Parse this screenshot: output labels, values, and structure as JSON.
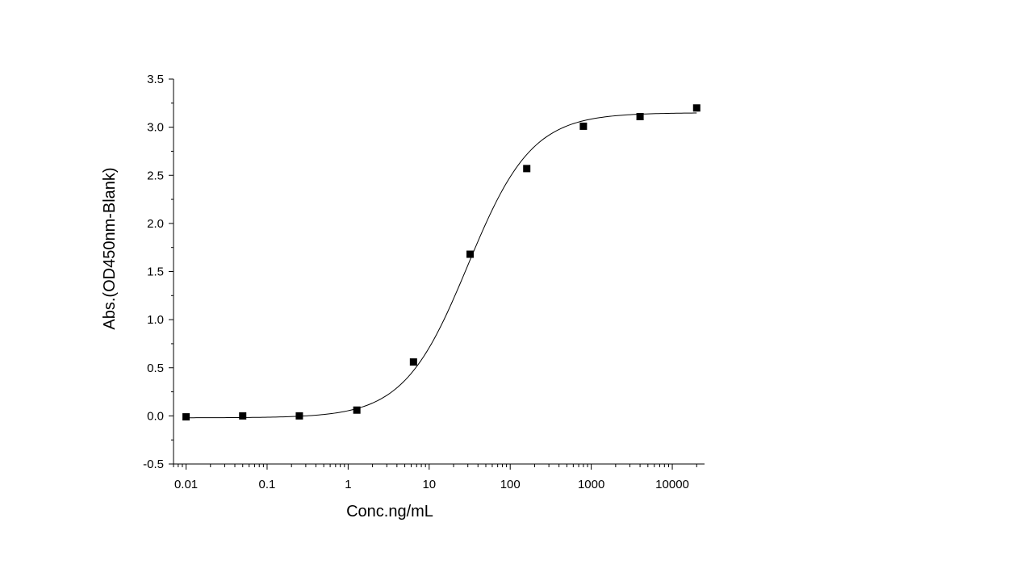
{
  "chart_data": {
    "type": "scatter",
    "title": "",
    "xlabel": "Conc.ng/mL",
    "ylabel": "Abs.(OD450nm-Blank)",
    "x_scale": "log",
    "xlim": [
      0.007,
      25000
    ],
    "ylim": [
      -0.5,
      3.5
    ],
    "x_ticks": [
      {
        "value": 0.01,
        "label": "0.01"
      },
      {
        "value": 0.1,
        "label": "0.1"
      },
      {
        "value": 1,
        "label": "1"
      },
      {
        "value": 10,
        "label": "10"
      },
      {
        "value": 100,
        "label": "100"
      },
      {
        "value": 1000,
        "label": "1000"
      },
      {
        "value": 10000,
        "label": "10000"
      }
    ],
    "y_ticks": [
      {
        "value": -0.5,
        "label": "-0.5"
      },
      {
        "value": 0.0,
        "label": "0.0"
      },
      {
        "value": 0.5,
        "label": "0.5"
      },
      {
        "value": 1.0,
        "label": "1.0"
      },
      {
        "value": 1.5,
        "label": "1.5"
      },
      {
        "value": 2.0,
        "label": "2.0"
      },
      {
        "value": 2.5,
        "label": "2.5"
      },
      {
        "value": 3.0,
        "label": "3.0"
      },
      {
        "value": 3.5,
        "label": "3.5"
      }
    ],
    "grid": false,
    "legend": "none",
    "series": [
      {
        "marker": "square",
        "color": "#000000",
        "x": [
          0.01,
          0.05,
          0.25,
          1.28,
          6.4,
          32,
          160,
          800,
          4000,
          20000
        ],
        "y": [
          -0.01,
          0.0,
          0.0,
          0.06,
          0.56,
          1.68,
          2.57,
          3.01,
          3.11,
          3.2
        ]
      }
    ],
    "fit_curve": {
      "model": "4PL",
      "color": "#000000",
      "bottom": -0.02,
      "top": 3.15,
      "ec50": 30,
      "hill": 1.1
    }
  }
}
